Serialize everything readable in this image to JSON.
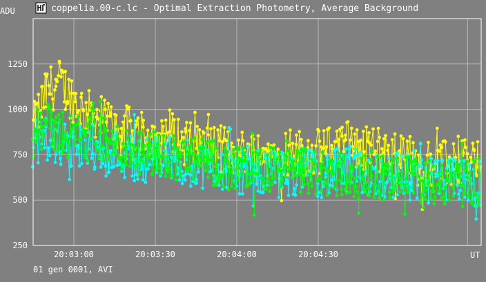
{
  "window": {
    "title": "coppelia.00-c.lc - Optimal Extraction Photometry, Average Background",
    "icon": "app-icon"
  },
  "status_line": "01 gen 0001, AVI",
  "colors": {
    "background": "#808080",
    "grid": "#b8b8b8",
    "axis": "#ffffff",
    "text": "#ffffff"
  },
  "chart_data": {
    "type": "scatter",
    "title": "coppelia.00-c.lc - Optimal Extraction Photometry, Average Background",
    "ylabel": "ADU",
    "xlabel": "UT",
    "ylim": [
      250,
      1500
    ],
    "xlim": [
      "20:02:45",
      "20:05:30"
    ],
    "x_ticks": [
      "20:03:00",
      "20:03:30",
      "20:04:00",
      "20:04:30"
    ],
    "y_ticks": [
      250,
      500,
      750,
      1000,
      1250
    ],
    "grid": true,
    "series": [
      {
        "color": "#ffff00",
        "marker": "dot-line",
        "x": [
          "20:02:45",
          "20:02:50",
          "20:02:55",
          "20:03:00",
          "20:03:05",
          "20:03:10",
          "20:03:15",
          "20:03:20",
          "20:03:25",
          "20:03:30",
          "20:03:35",
          "20:03:40",
          "20:03:45",
          "20:03:50",
          "20:03:55",
          "20:04:00",
          "20:04:05",
          "20:04:10",
          "20:04:15",
          "20:04:20",
          "20:04:25",
          "20:04:30",
          "20:04:35",
          "20:04:40",
          "20:04:45",
          "20:04:50",
          "20:04:55",
          "20:05:00",
          "20:05:05",
          "20:05:10",
          "20:05:15",
          "20:05:20",
          "20:05:25",
          "20:05:30"
        ],
        "y": [
          900,
          1100,
          1150,
          1050,
          980,
          960,
          900,
          890,
          870,
          850,
          880,
          820,
          800,
          790,
          780,
          760,
          770,
          760,
          740,
          770,
          760,
          760,
          780,
          820,
          800,
          770,
          760,
          740,
          700,
          710,
          700,
          690,
          700,
          720
        ]
      },
      {
        "color": "#00ffff",
        "marker": "dot-line",
        "x": [
          "20:02:45",
          "20:02:50",
          "20:02:55",
          "20:03:00",
          "20:03:05",
          "20:03:10",
          "20:03:15",
          "20:03:20",
          "20:03:25",
          "20:03:30",
          "20:03:35",
          "20:03:40",
          "20:03:45",
          "20:03:50",
          "20:03:55",
          "20:04:00",
          "20:04:05",
          "20:04:10",
          "20:04:15",
          "20:04:20",
          "20:04:25",
          "20:04:30",
          "20:04:35",
          "20:04:40",
          "20:04:45",
          "20:04:50",
          "20:04:55",
          "20:05:00",
          "20:05:05",
          "20:05:10",
          "20:05:15",
          "20:05:20",
          "20:05:25",
          "20:05:30"
        ],
        "y": [
          800,
          850,
          800,
          780,
          790,
          800,
          760,
          740,
          720,
          730,
          740,
          700,
          700,
          690,
          680,
          660,
          670,
          650,
          640,
          650,
          660,
          640,
          650,
          660,
          650,
          640,
          630,
          640,
          620,
          610,
          600,
          600,
          590,
          600
        ]
      },
      {
        "color": "#00ff00",
        "marker": "dot-line",
        "x": [
          "20:02:45",
          "20:02:50",
          "20:02:55",
          "20:03:00",
          "20:03:05",
          "20:03:10",
          "20:03:15",
          "20:03:20",
          "20:03:25",
          "20:03:30",
          "20:03:35",
          "20:03:40",
          "20:03:45",
          "20:03:50",
          "20:03:55",
          "20:04:00",
          "20:04:05",
          "20:04:10",
          "20:04:15",
          "20:04:20",
          "20:04:25",
          "20:04:30",
          "20:04:35",
          "20:04:40",
          "20:04:45",
          "20:04:50",
          "20:04:55",
          "20:05:00",
          "20:05:05",
          "20:05:10",
          "20:05:15",
          "20:05:20",
          "20:05:25",
          "20:05:30"
        ],
        "y": [
          850,
          900,
          880,
          850,
          840,
          830,
          800,
          780,
          770,
          760,
          750,
          730,
          720,
          700,
          690,
          680,
          670,
          670,
          660,
          650,
          660,
          650,
          640,
          640,
          630,
          640,
          620,
          610,
          620,
          600,
          590,
          600,
          590,
          600
        ]
      }
    ]
  }
}
